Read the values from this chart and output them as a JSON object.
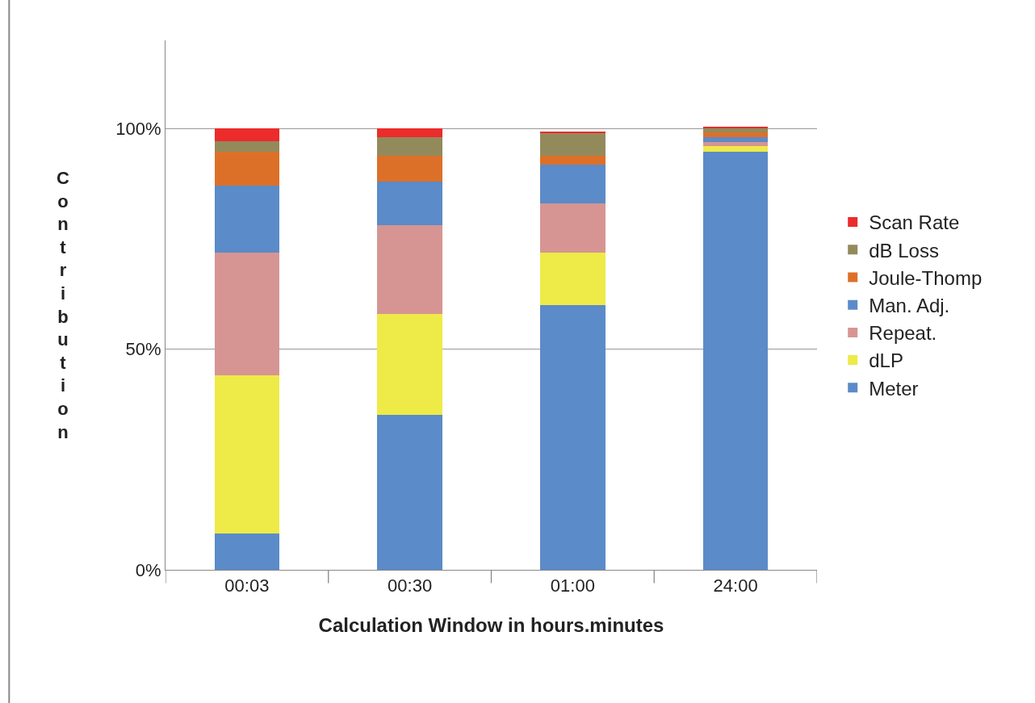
{
  "chart_data": {
    "type": "bar",
    "stacked": true,
    "xlabel": "Calculation Window in hours.minutes",
    "ylabel": "Contribution",
    "categories": [
      "00:03",
      "00:30",
      "01:00",
      "24:00"
    ],
    "series": [
      {
        "name": "Meter",
        "color": "#5b8bc8",
        "values": [
          8.2,
          35.1,
          60.0,
          94.8
        ]
      },
      {
        "name": "dLP",
        "color": "#eeea48",
        "values": [
          35.9,
          22.9,
          11.8,
          1.3
        ]
      },
      {
        "name": "Repeat.",
        "color": "#d69593",
        "values": [
          27.7,
          20.2,
          11.2,
          0.9
        ]
      },
      {
        "name": "Man. Adj.",
        "color": "#5b8bc8",
        "values": [
          15.2,
          9.8,
          8.9,
          1.0
        ]
      },
      {
        "name": "Joule-Thomp",
        "color": "#dd7029",
        "values": [
          7.8,
          5.8,
          1.9,
          1.1
        ]
      },
      {
        "name": "dB Loss",
        "color": "#938a5c",
        "values": [
          2.3,
          4.2,
          5.1,
          0.9
        ]
      },
      {
        "name": "Scan Rate",
        "color": "#ec2b2b",
        "values": [
          2.9,
          2.0,
          0.4,
          0.4
        ]
      }
    ],
    "ylim": [
      0,
      120
    ],
    "yticks": [
      {
        "value": 0,
        "label": "0%"
      },
      {
        "value": 50,
        "label": "50%"
      },
      {
        "value": 100,
        "label": "100%"
      }
    ],
    "grid": "y",
    "legend": "right"
  }
}
